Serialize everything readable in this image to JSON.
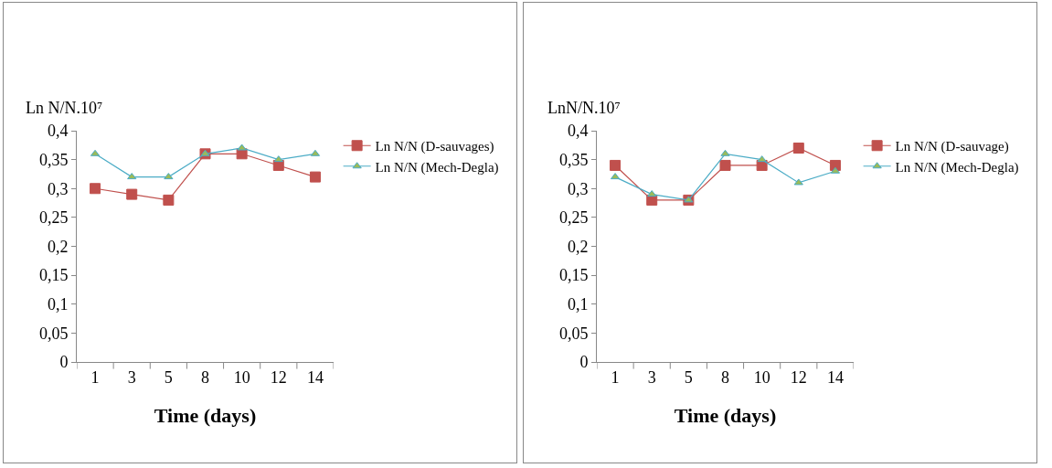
{
  "chart_data": [
    {
      "type": "line",
      "ylabel": "Ln N/N.10⁷",
      "xlabel": "Time (days)",
      "categories": [
        "1",
        "3",
        "5",
        "8",
        "10",
        "12",
        "14"
      ],
      "series": [
        {
          "name": "Ln N/N (D-sauvages)",
          "color": "#c0504d",
          "marker": "square",
          "values": [
            0.3,
            0.29,
            0.28,
            0.36,
            0.36,
            0.34,
            0.32
          ]
        },
        {
          "name": "Ln N/N (Mech-Degla)",
          "color": "#4bacc6",
          "marker": "triangle",
          "values": [
            0.36,
            0.32,
            0.32,
            0.36,
            0.37,
            0.35,
            0.36
          ]
        }
      ],
      "ylim": [
        0,
        0.4
      ],
      "yticks": [
        {
          "value": 0,
          "label": "0"
        },
        {
          "value": 0.05,
          "label": "0,05"
        },
        {
          "value": 0.1,
          "label": "0,1"
        },
        {
          "value": 0.15,
          "label": "0,15"
        },
        {
          "value": 0.2,
          "label": "0,2"
        },
        {
          "value": 0.25,
          "label": "0,25"
        },
        {
          "value": 0.3,
          "label": "0,3"
        },
        {
          "value": 0.35,
          "label": "0,35"
        },
        {
          "value": 0.4,
          "label": "0,4"
        }
      ],
      "grid": false,
      "legend": "right"
    },
    {
      "type": "line",
      "ylabel": "LnN/N.10⁷",
      "xlabel": "Time (days)",
      "categories": [
        "1",
        "3",
        "5",
        "8",
        "10",
        "12",
        "14"
      ],
      "series": [
        {
          "name": "Ln N/N (D-sauvage)",
          "color": "#c0504d",
          "marker": "square",
          "values": [
            0.34,
            0.28,
            0.28,
            0.34,
            0.34,
            0.37,
            0.34
          ]
        },
        {
          "name": "Ln N/N (Mech-Degla)",
          "color": "#4bacc6",
          "marker": "triangle",
          "values": [
            0.32,
            0.29,
            0.28,
            0.36,
            0.35,
            0.31,
            0.33
          ]
        }
      ],
      "ylim": [
        0,
        0.4
      ],
      "yticks": [
        {
          "value": 0,
          "label": "0"
        },
        {
          "value": 0.05,
          "label": "0,05"
        },
        {
          "value": 0.1,
          "label": "0,1"
        },
        {
          "value": 0.15,
          "label": "0,15"
        },
        {
          "value": 0.2,
          "label": "0,2"
        },
        {
          "value": 0.25,
          "label": "0,25"
        },
        {
          "value": 0.3,
          "label": "0,3"
        },
        {
          "value": 0.35,
          "label": "0,35"
        },
        {
          "value": 0.4,
          "label": "0,4"
        }
      ],
      "grid": false,
      "legend": "right"
    }
  ]
}
